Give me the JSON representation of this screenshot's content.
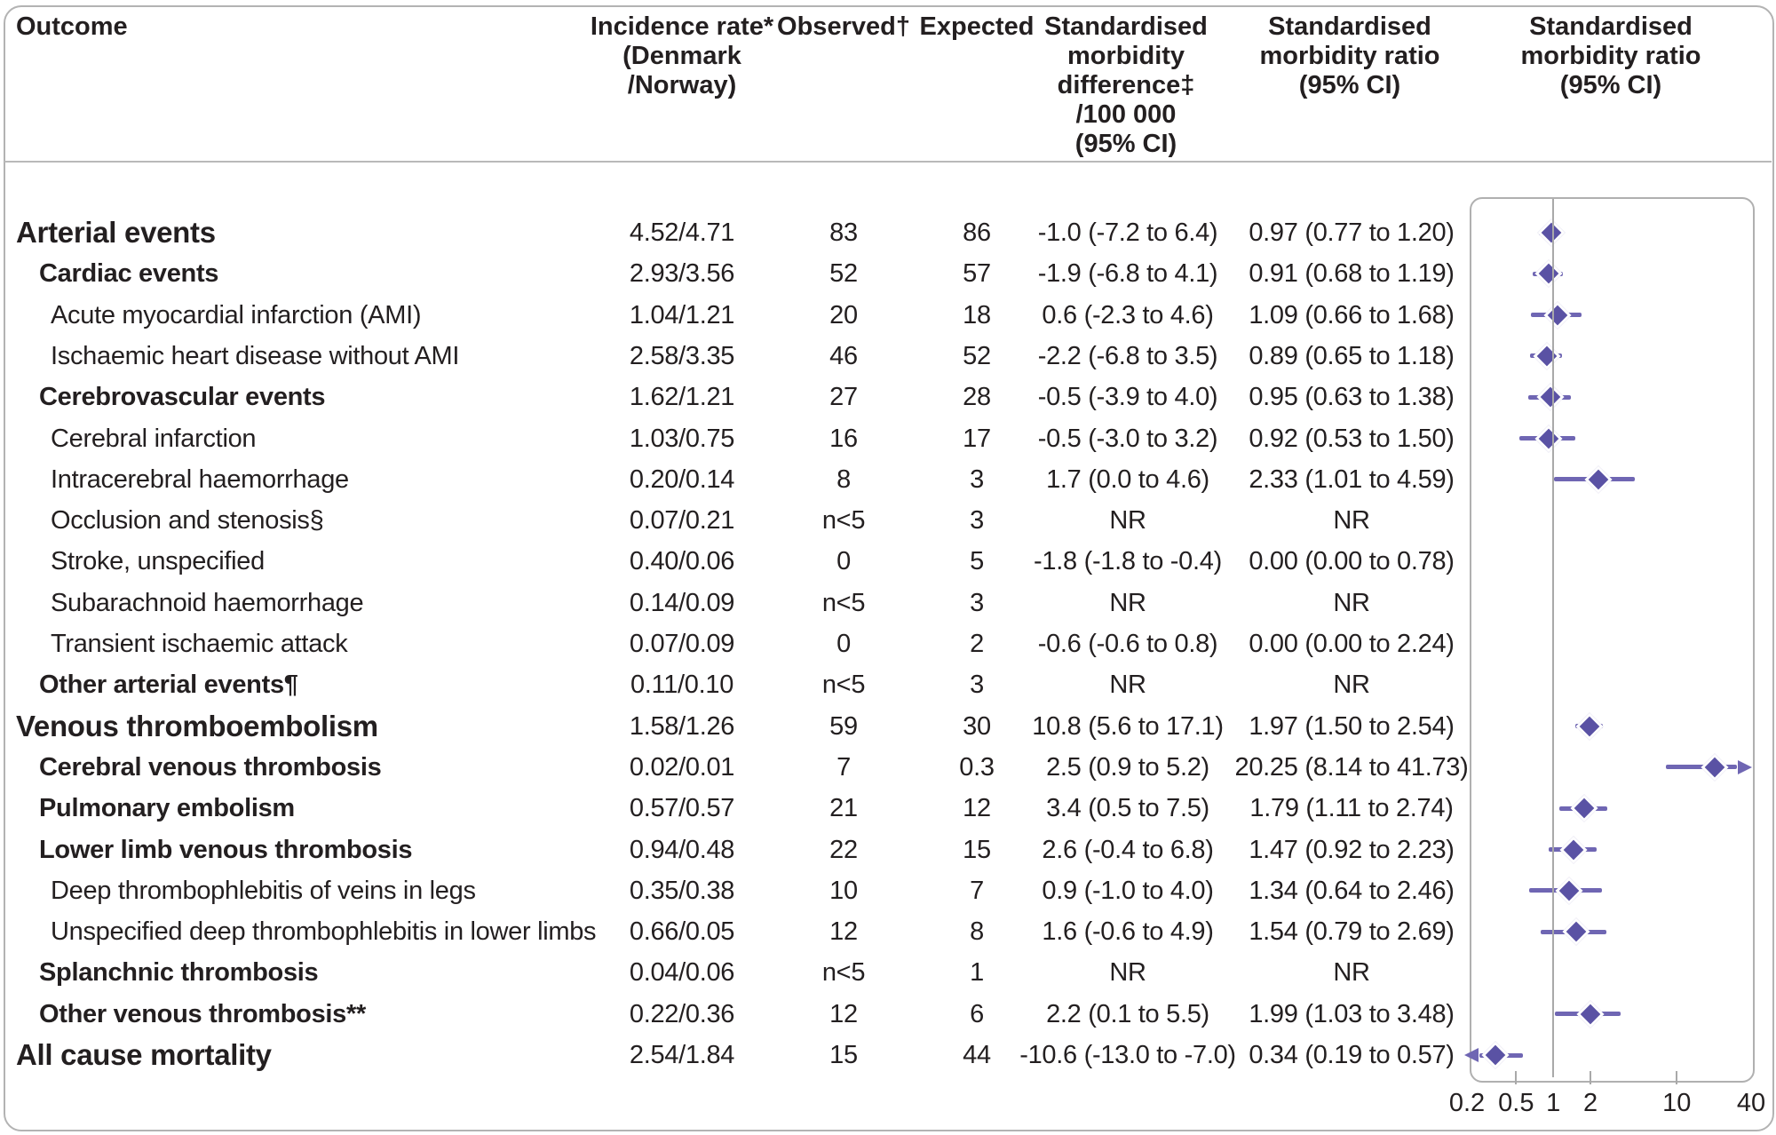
{
  "header": {
    "outcome": "Outcome",
    "incidence": [
      "Incidence rate*",
      "(Denmark",
      "/Norway)"
    ],
    "observed": "Observed†",
    "expected": "Expected",
    "smd": [
      "Standardised",
      "morbidity",
      "difference‡",
      "/100 000",
      "(95% CI)"
    ],
    "smr": [
      "Standardised",
      "morbidity ratio",
      "(95% CI)"
    ],
    "plot": [
      "Standardised",
      "morbidity ratio",
      "(95% CI)"
    ]
  },
  "colors": {
    "diamond": "#5a52a4",
    "ci_line": "#6f66b3",
    "reference_line": "#a9a9a9",
    "panel_border": "#b0b0b0",
    "frame_border": "#b3b3b3",
    "separator": "#b9b9b9",
    "text": "#231f20"
  },
  "chart_data": {
    "type": "forest_plot_table",
    "columns": [
      "Outcome",
      "Incidence rate* (Denmark /Norway)",
      "Observed†",
      "Expected",
      "Standardised morbidity difference‡ /100 000 (95% CI)",
      "Standardised morbidity ratio (95% CI)",
      "Standardised morbidity ratio (95% CI)"
    ],
    "x_axis": {
      "scale": "log",
      "min": 0.2,
      "max": 40,
      "reference_line": 1,
      "tick_labels": [
        "0.2",
        "0.5",
        "1",
        "2",
        "10",
        "40"
      ],
      "tick_values": [
        0.2,
        0.5,
        1,
        2,
        10,
        40
      ],
      "minor_tick_marks": [
        0.5,
        2,
        10
      ]
    },
    "rows": [
      {
        "outcome": "Arterial events",
        "level": 0,
        "bold": true,
        "incidence": "4.52/4.71",
        "observed": "83",
        "expected": "86",
        "smd": "-1.0 (-7.2 to 6.4)",
        "smr": "0.97 (0.77 to 1.20)",
        "est": 0.97,
        "lo": 0.77,
        "hi": 1.2
      },
      {
        "outcome": "Cardiac events",
        "level": 1,
        "bold": true,
        "incidence": "2.93/3.56",
        "observed": "52",
        "expected": "57",
        "smd": "-1.9 (-6.8 to 4.1)",
        "smr": "0.91 (0.68 to 1.19)",
        "est": 0.91,
        "lo": 0.68,
        "hi": 1.19
      },
      {
        "outcome": "Acute myocardial infarction (AMI)",
        "level": 2,
        "bold": false,
        "incidence": "1.04/1.21",
        "observed": "20",
        "expected": "18",
        "smd": "0.6 (-2.3 to 4.6)",
        "smr": "1.09 (0.66 to 1.68)",
        "est": 1.09,
        "lo": 0.66,
        "hi": 1.68
      },
      {
        "outcome": "Ischaemic heart disease without AMI",
        "level": 2,
        "bold": false,
        "incidence": "2.58/3.35",
        "observed": "46",
        "expected": "52",
        "smd": "-2.2 (-6.8 to 3.5)",
        "smr": "0.89 (0.65 to 1.18)",
        "est": 0.89,
        "lo": 0.65,
        "hi": 1.18
      },
      {
        "outcome": "Cerebrovascular events",
        "level": 1,
        "bold": true,
        "incidence": "1.62/1.21",
        "observed": "27",
        "expected": "28",
        "smd": "-0.5 (-3.9 to 4.0)",
        "smr": "0.95 (0.63 to 1.38)",
        "est": 0.95,
        "lo": 0.63,
        "hi": 1.38
      },
      {
        "outcome": "Cerebral infarction",
        "level": 2,
        "bold": false,
        "incidence": "1.03/0.75",
        "observed": "16",
        "expected": "17",
        "smd": "-0.5 (-3.0 to 3.2)",
        "smr": "0.92 (0.53 to 1.50)",
        "est": 0.92,
        "lo": 0.53,
        "hi": 1.5
      },
      {
        "outcome": "Intracerebral haemorrhage",
        "level": 2,
        "bold": false,
        "incidence": "0.20/0.14",
        "observed": "8",
        "expected": "3",
        "smd": "1.7 (0.0 to 4.6)",
        "smr": "2.33 (1.01 to 4.59)",
        "est": 2.33,
        "lo": 1.01,
        "hi": 4.59
      },
      {
        "outcome": "Occlusion and stenosis§",
        "level": 2,
        "bold": false,
        "incidence": "0.07/0.21",
        "observed": "n<5",
        "expected": "3",
        "smd": "NR",
        "smr": "NR",
        "est": null,
        "lo": null,
        "hi": null
      },
      {
        "outcome": "Stroke, unspecified",
        "level": 2,
        "bold": false,
        "incidence": "0.40/0.06",
        "observed": "0",
        "expected": "5",
        "smd": "-1.8 (-1.8 to -0.4)",
        "smr": "0.00 (0.00 to 0.78)",
        "est": null,
        "lo": null,
        "hi": null
      },
      {
        "outcome": "Subarachnoid haemorrhage",
        "level": 2,
        "bold": false,
        "incidence": "0.14/0.09",
        "observed": "n<5",
        "expected": "3",
        "smd": "NR",
        "smr": "NR",
        "est": null,
        "lo": null,
        "hi": null
      },
      {
        "outcome": "Transient ischaemic attack",
        "level": 2,
        "bold": false,
        "incidence": "0.07/0.09",
        "observed": "0",
        "expected": "2",
        "smd": "-0.6 (-0.6 to 0.8)",
        "smr": "0.00 (0.00 to 2.24)",
        "est": null,
        "lo": null,
        "hi": null
      },
      {
        "outcome": "Other arterial events¶",
        "level": 1,
        "bold": true,
        "incidence": "0.11/0.10",
        "observed": "n<5",
        "expected": "3",
        "smd": "NR",
        "smr": "NR",
        "est": null,
        "lo": null,
        "hi": null
      },
      {
        "outcome": "Venous thromboembolism",
        "level": 0,
        "bold": true,
        "incidence": "1.58/1.26",
        "observed": "59",
        "expected": "30",
        "smd": "10.8 (5.6 to 17.1)",
        "smr": "1.97 (1.50 to 2.54)",
        "est": 1.97,
        "lo": 1.5,
        "hi": 2.54
      },
      {
        "outcome": "Cerebral venous thrombosis",
        "level": 1,
        "bold": true,
        "incidence": "0.02/0.01",
        "observed": "7",
        "expected": "0.3",
        "smd": "2.5 (0.9 to 5.2)",
        "smr": "20.25 (8.14 to 41.73)",
        "est": 20.25,
        "lo": 8.14,
        "hi": 41.73
      },
      {
        "outcome": "Pulmonary embolism",
        "level": 1,
        "bold": true,
        "incidence": "0.57/0.57",
        "observed": "21",
        "expected": "12",
        "smd": "3.4 (0.5 to 7.5)",
        "smr": "1.79 (1.11 to 2.74)",
        "est": 1.79,
        "lo": 1.11,
        "hi": 2.74
      },
      {
        "outcome": "Lower limb venous thrombosis",
        "level": 1,
        "bold": true,
        "incidence": "0.94/0.48",
        "observed": "22",
        "expected": "15",
        "smd": "2.6 (-0.4 to 6.8)",
        "smr": "1.47 (0.92 to 2.23)",
        "est": 1.47,
        "lo": 0.92,
        "hi": 2.23
      },
      {
        "outcome": "Deep thrombophlebitis of veins in legs",
        "level": 2,
        "bold": false,
        "incidence": "0.35/0.38",
        "observed": "10",
        "expected": "7",
        "smd": "0.9 (-1.0 to 4.0)",
        "smr": "1.34 (0.64 to 2.46)",
        "est": 1.34,
        "lo": 0.64,
        "hi": 2.46
      },
      {
        "outcome": "Unspecified deep thrombophlebitis in lower limbs",
        "level": 2,
        "bold": false,
        "incidence": "0.66/0.05",
        "observed": "12",
        "expected": "8",
        "smd": "1.6 (-0.6 to 4.9)",
        "smr": "1.54 (0.79 to 2.69)",
        "est": 1.54,
        "lo": 0.79,
        "hi": 2.69
      },
      {
        "outcome": "Splanchnic thrombosis",
        "level": 1,
        "bold": true,
        "incidence": "0.04/0.06",
        "observed": "n<5",
        "expected": "1",
        "smd": "NR",
        "smr": "NR",
        "est": null,
        "lo": null,
        "hi": null
      },
      {
        "outcome": "Other venous thrombosis**",
        "level": 1,
        "bold": true,
        "incidence": "0.22/0.36",
        "observed": "12",
        "expected": "6",
        "smd": "2.2 (0.1 to 5.5)",
        "smr": "1.99 (1.03 to 3.48)",
        "est": 1.99,
        "lo": 1.03,
        "hi": 3.48
      },
      {
        "outcome": "All cause mortality",
        "level": 0,
        "bold": true,
        "incidence": "2.54/1.84",
        "observed": "15",
        "expected": "44",
        "smd": "-10.6 (-13.0 to -7.0)",
        "smr": "0.34 (0.19 to 0.57)",
        "est": 0.34,
        "lo": 0.19,
        "hi": 0.57
      }
    ]
  }
}
